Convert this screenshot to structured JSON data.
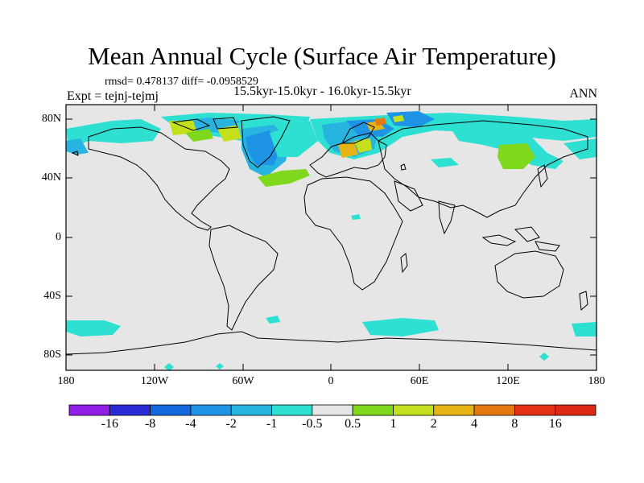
{
  "header": {
    "title": "Mean Annual Cycle (Surface Air Temperature)",
    "stats": "rmsd= 0.478137 diff= -0.0958529",
    "experiment": "Expt = tejnj-tejmj",
    "period": "15.5kyr-15.0kyr - 16.0kyr-15.5kyr",
    "season": "ANN"
  },
  "axes": {
    "y_ticks": [
      "80N",
      "40N",
      "0",
      "40S",
      "80S"
    ],
    "y_values": [
      80,
      40,
      0,
      -40,
      -80
    ],
    "x_ticks": [
      "180",
      "120W",
      "60W",
      "0",
      "60E",
      "120E",
      "180"
    ],
    "x_values": [
      -180,
      -120,
      -60,
      0,
      60,
      120,
      180
    ],
    "lon_range": [
      -180,
      180
    ],
    "lat_range": [
      -90,
      90
    ]
  },
  "colorbar": {
    "labels": [
      "-16",
      "-8",
      "-4",
      "-2",
      "-1",
      "-0.5",
      "0.5",
      "1",
      "2",
      "4",
      "8",
      "16"
    ],
    "colors": [
      "#8f1ee6",
      "#2b2bd6",
      "#1468de",
      "#1e94e6",
      "#28b4e0",
      "#2ee0d2",
      "#e6e6e6",
      "#7fd81c",
      "#c4e01c",
      "#e6b414",
      "#e67814",
      "#e63214",
      "#dc2814"
    ]
  },
  "field": {
    "background_color": "#e6e6e6",
    "coastline_color": "#000000"
  }
}
